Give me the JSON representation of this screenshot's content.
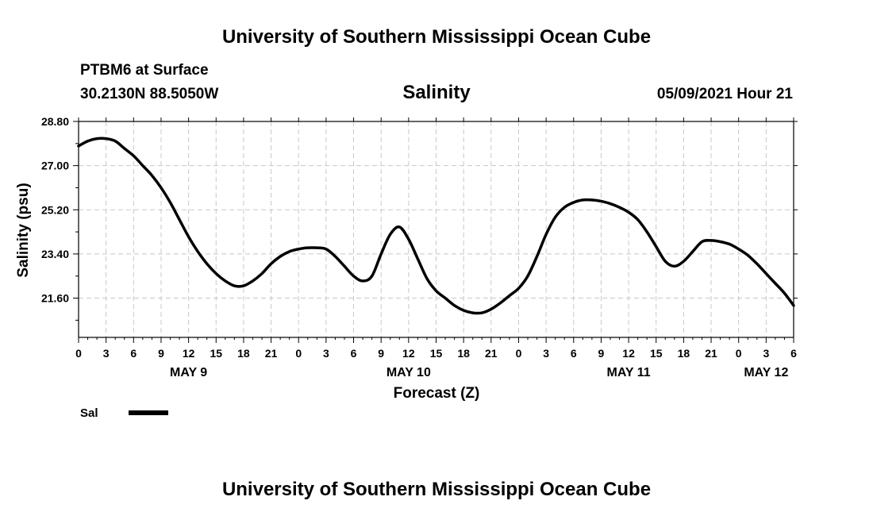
{
  "header": {
    "title_top": "University of Southern Mississippi Ocean Cube",
    "station": "PTBM6 at Surface",
    "coords": "30.2130N  88.5050W",
    "variable": "Salinity",
    "datetime": "05/09/2021 Hour 21"
  },
  "footer": {
    "title_bottom": "University of Southern Mississippi Ocean Cube"
  },
  "legend": {
    "label": "Sal",
    "color": "#000000"
  },
  "chart_data": {
    "type": "line",
    "title": "Salinity",
    "xlabel": "Forecast (Z)",
    "ylabel": "Salinity (psu)",
    "xlim": [
      0,
      78
    ],
    "ylim": [
      20.0,
      28.8
    ],
    "x_ticks": [
      0,
      3,
      6,
      9,
      12,
      15,
      18,
      21,
      24,
      27,
      30,
      33,
      36,
      39,
      42,
      45,
      48,
      51,
      54,
      57,
      60,
      63,
      66,
      69,
      72,
      75,
      78
    ],
    "x_tick_labels": [
      "0",
      "3",
      "6",
      "9",
      "12",
      "15",
      "18",
      "21",
      "0",
      "3",
      "6",
      "9",
      "12",
      "15",
      "18",
      "21",
      "0",
      "3",
      "6",
      "9",
      "12",
      "15",
      "18",
      "21",
      "0",
      "3",
      "6"
    ],
    "y_ticks": [
      21.6,
      23.4,
      25.2,
      27.0,
      28.8
    ],
    "y_tick_labels": [
      "21.60",
      "23.40",
      "25.20",
      "27.00",
      "28.80"
    ],
    "date_labels": [
      {
        "label": "MAY 9",
        "x": 12
      },
      {
        "label": "MAY 10",
        "x": 36
      },
      {
        "label": "MAY 11",
        "x": 60
      },
      {
        "label": "MAY 12",
        "x": 75
      }
    ],
    "grid": true,
    "series": [
      {
        "name": "Sal",
        "x": [
          0,
          1,
          2,
          3,
          4,
          5,
          6,
          7,
          8,
          9,
          10,
          11,
          12,
          13,
          14,
          15,
          16,
          17,
          18,
          19,
          20,
          21,
          22,
          23,
          24,
          25,
          26,
          27,
          28,
          29,
          30,
          31,
          32,
          33,
          34,
          35,
          36,
          37,
          38,
          39,
          40,
          41,
          42,
          43,
          44,
          45,
          46,
          47,
          48,
          49,
          50,
          51,
          52,
          53,
          54,
          55,
          56,
          57,
          58,
          59,
          60,
          61,
          62,
          63,
          64,
          65,
          66,
          67,
          68,
          69,
          70,
          71,
          72,
          73,
          74,
          75,
          76,
          77,
          78
        ],
        "values": [
          27.8,
          28.0,
          28.1,
          28.1,
          28.0,
          27.7,
          27.4,
          27.0,
          26.6,
          26.1,
          25.5,
          24.8,
          24.1,
          23.5,
          23.0,
          22.6,
          22.3,
          22.1,
          22.1,
          22.3,
          22.6,
          23.0,
          23.3,
          23.5,
          23.6,
          23.65,
          23.65,
          23.6,
          23.3,
          22.9,
          22.5,
          22.3,
          22.5,
          23.4,
          24.2,
          24.5,
          24.0,
          23.2,
          22.4,
          21.9,
          21.6,
          21.3,
          21.1,
          21.0,
          21.0,
          21.15,
          21.4,
          21.7,
          22.0,
          22.5,
          23.3,
          24.2,
          24.9,
          25.3,
          25.5,
          25.6,
          25.6,
          25.55,
          25.45,
          25.3,
          25.1,
          24.8,
          24.3,
          23.7,
          23.1,
          22.9,
          23.1,
          23.5,
          23.9,
          23.95,
          23.9,
          23.8,
          23.6,
          23.35,
          23.0,
          22.6,
          22.2,
          21.8,
          21.3
        ]
      }
    ]
  }
}
